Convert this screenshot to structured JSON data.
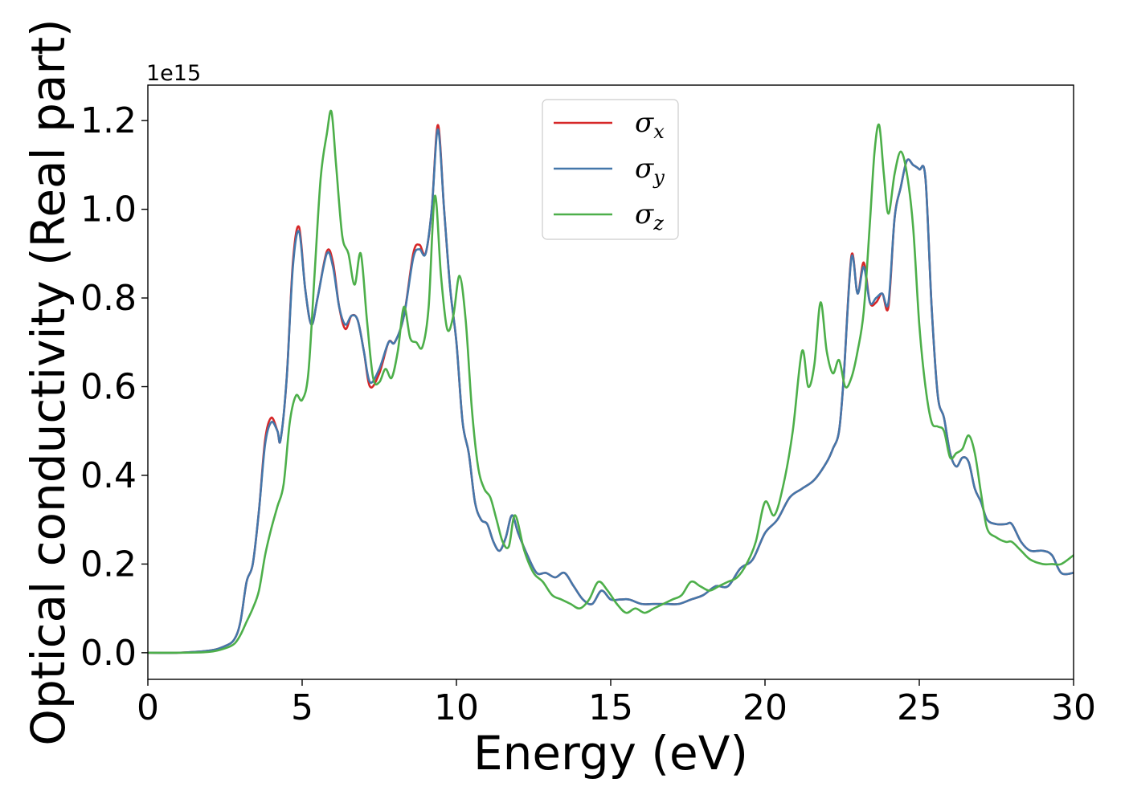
{
  "chart_data": {
    "type": "line",
    "title": "",
    "xlabel": "Energy (eV)",
    "ylabel": "Optical conductivity (Real part)",
    "y_offset_label": "1e15",
    "xlim": [
      0,
      30
    ],
    "ylim": [
      -0.06,
      1.28
    ],
    "x_ticks": [
      0,
      5,
      10,
      15,
      20,
      25,
      30
    ],
    "x_tick_labels": [
      "0",
      "5",
      "10",
      "15",
      "20",
      "25",
      "30"
    ],
    "y_ticks": [
      0.0,
      0.2,
      0.4,
      0.6,
      0.8,
      1.0,
      1.2
    ],
    "y_tick_labels": [
      "0.0",
      "0.2",
      "0.4",
      "0.6",
      "0.8",
      "1.0",
      "1.2"
    ],
    "grid": false,
    "legend_position": "top-center",
    "series": [
      {
        "name": "σx",
        "legend_base": "σ",
        "legend_sub": "x",
        "color": "#d62728",
        "x": [
          0,
          1,
          2,
          2.5,
          2.8,
          3.0,
          3.2,
          3.4,
          3.6,
          3.8,
          4.0,
          4.2,
          4.3,
          4.5,
          4.7,
          4.9,
          5.1,
          5.3,
          5.5,
          5.8,
          6.0,
          6.2,
          6.4,
          6.6,
          6.8,
          7.0,
          7.2,
          7.5,
          7.8,
          8.0,
          8.3,
          8.6,
          8.8,
          9.0,
          9.2,
          9.4,
          9.6,
          9.8,
          10.0,
          10.2,
          10.4,
          10.6,
          10.8,
          11.0,
          11.2,
          11.4,
          11.6,
          11.8,
          12.0,
          12.3,
          12.6,
          12.9,
          13.2,
          13.5,
          13.8,
          14.1,
          14.4,
          14.7,
          15.0,
          15.3,
          15.6,
          16.0,
          16.4,
          16.8,
          17.2,
          17.6,
          18.0,
          18.4,
          18.8,
          19.2,
          19.6,
          20.0,
          20.4,
          20.8,
          21.2,
          21.6,
          22.0,
          22.2,
          22.4,
          22.55,
          22.8,
          23.0,
          23.2,
          23.4,
          23.6,
          23.8,
          24.0,
          24.2,
          24.4,
          24.6,
          24.8,
          25.0,
          25.2,
          25.4,
          25.6,
          25.8,
          26.0,
          26.2,
          26.4,
          26.6,
          26.8,
          27.0,
          27.2,
          27.5,
          27.8,
          28.0,
          28.3,
          28.6,
          29.0,
          29.3,
          29.6,
          30.0
        ],
        "y": [
          0.0,
          0.0,
          0.005,
          0.015,
          0.03,
          0.07,
          0.16,
          0.2,
          0.32,
          0.48,
          0.53,
          0.5,
          0.48,
          0.62,
          0.88,
          0.96,
          0.82,
          0.74,
          0.8,
          0.905,
          0.88,
          0.78,
          0.73,
          0.76,
          0.75,
          0.68,
          0.6,
          0.63,
          0.7,
          0.7,
          0.76,
          0.9,
          0.92,
          0.9,
          1.0,
          1.19,
          1.0,
          0.82,
          0.7,
          0.52,
          0.45,
          0.34,
          0.3,
          0.29,
          0.25,
          0.23,
          0.26,
          0.31,
          0.27,
          0.22,
          0.18,
          0.18,
          0.17,
          0.18,
          0.15,
          0.12,
          0.11,
          0.14,
          0.12,
          0.12,
          0.12,
          0.11,
          0.11,
          0.11,
          0.11,
          0.12,
          0.13,
          0.15,
          0.15,
          0.19,
          0.21,
          0.27,
          0.3,
          0.35,
          0.37,
          0.39,
          0.43,
          0.46,
          0.5,
          0.62,
          0.895,
          0.81,
          0.88,
          0.79,
          0.79,
          0.81,
          0.78,
          0.98,
          1.05,
          1.11,
          1.1,
          1.09,
          1.07,
          0.78,
          0.58,
          0.53,
          0.45,
          0.42,
          0.44,
          0.43,
          0.37,
          0.34,
          0.3,
          0.29,
          0.29,
          0.29,
          0.25,
          0.23,
          0.23,
          0.22,
          0.18,
          0.18
        ]
      },
      {
        "name": "σy",
        "legend_base": "σ",
        "legend_sub": "y",
        "color": "#4477aa",
        "x": [
          0,
          1,
          2,
          2.5,
          2.8,
          3.0,
          3.2,
          3.4,
          3.6,
          3.8,
          4.0,
          4.2,
          4.3,
          4.5,
          4.7,
          4.9,
          5.1,
          5.3,
          5.5,
          5.8,
          6.0,
          6.2,
          6.4,
          6.6,
          6.8,
          7.0,
          7.2,
          7.5,
          7.8,
          8.0,
          8.3,
          8.6,
          8.8,
          9.0,
          9.2,
          9.4,
          9.6,
          9.8,
          10.0,
          10.2,
          10.4,
          10.6,
          10.8,
          11.0,
          11.2,
          11.4,
          11.6,
          11.8,
          12.0,
          12.3,
          12.6,
          12.9,
          13.2,
          13.5,
          13.8,
          14.1,
          14.4,
          14.7,
          15.0,
          15.3,
          15.6,
          16.0,
          16.4,
          16.8,
          17.2,
          17.6,
          18.0,
          18.4,
          18.8,
          19.2,
          19.6,
          20.0,
          20.4,
          20.8,
          21.2,
          21.6,
          22.0,
          22.2,
          22.4,
          22.55,
          22.8,
          23.0,
          23.2,
          23.4,
          23.6,
          23.8,
          24.0,
          24.2,
          24.4,
          24.6,
          24.8,
          25.0,
          25.2,
          25.4,
          25.6,
          25.8,
          26.0,
          26.2,
          26.4,
          26.6,
          26.8,
          27.0,
          27.2,
          27.5,
          27.8,
          28.0,
          28.3,
          28.6,
          29.0,
          29.3,
          29.6,
          30.0
        ],
        "y": [
          0.0,
          0.0,
          0.005,
          0.015,
          0.03,
          0.07,
          0.16,
          0.2,
          0.32,
          0.47,
          0.52,
          0.5,
          0.48,
          0.62,
          0.87,
          0.95,
          0.82,
          0.74,
          0.8,
          0.9,
          0.87,
          0.78,
          0.74,
          0.76,
          0.75,
          0.68,
          0.61,
          0.64,
          0.7,
          0.7,
          0.76,
          0.89,
          0.91,
          0.9,
          1.0,
          1.18,
          1.0,
          0.82,
          0.7,
          0.52,
          0.45,
          0.34,
          0.3,
          0.29,
          0.25,
          0.23,
          0.26,
          0.31,
          0.27,
          0.22,
          0.18,
          0.18,
          0.17,
          0.18,
          0.15,
          0.12,
          0.11,
          0.14,
          0.12,
          0.12,
          0.12,
          0.11,
          0.11,
          0.11,
          0.11,
          0.12,
          0.13,
          0.15,
          0.15,
          0.19,
          0.21,
          0.27,
          0.3,
          0.35,
          0.37,
          0.39,
          0.43,
          0.46,
          0.5,
          0.62,
          0.89,
          0.81,
          0.87,
          0.79,
          0.8,
          0.81,
          0.79,
          0.98,
          1.05,
          1.11,
          1.1,
          1.09,
          1.07,
          0.78,
          0.58,
          0.53,
          0.45,
          0.42,
          0.44,
          0.43,
          0.37,
          0.34,
          0.3,
          0.29,
          0.29,
          0.29,
          0.25,
          0.23,
          0.23,
          0.22,
          0.18,
          0.18
        ]
      },
      {
        "name": "σz",
        "legend_base": "σ",
        "legend_sub": "z",
        "color": "#4daf4a",
        "x": [
          0,
          1,
          2,
          2.5,
          2.8,
          3.0,
          3.2,
          3.4,
          3.6,
          3.8,
          4.0,
          4.2,
          4.4,
          4.6,
          4.8,
          5.0,
          5.2,
          5.4,
          5.6,
          5.8,
          5.95,
          6.1,
          6.3,
          6.5,
          6.7,
          6.9,
          7.1,
          7.3,
          7.5,
          7.7,
          7.9,
          8.1,
          8.3,
          8.5,
          8.7,
          8.9,
          9.1,
          9.3,
          9.5,
          9.7,
          9.9,
          10.1,
          10.3,
          10.5,
          10.7,
          10.9,
          11.1,
          11.3,
          11.5,
          11.7,
          11.9,
          12.2,
          12.5,
          12.8,
          13.1,
          13.4,
          13.7,
          14.0,
          14.3,
          14.6,
          14.9,
          15.2,
          15.5,
          15.8,
          16.1,
          16.4,
          16.7,
          17.0,
          17.3,
          17.6,
          17.9,
          18.2,
          18.5,
          18.8,
          19.1,
          19.4,
          19.7,
          20.0,
          20.3,
          20.6,
          20.9,
          21.2,
          21.4,
          21.6,
          21.8,
          22.0,
          22.2,
          22.4,
          22.6,
          22.8,
          23.0,
          23.2,
          23.4,
          23.55,
          23.7,
          23.85,
          24.0,
          24.2,
          24.4,
          24.6,
          24.8,
          25.0,
          25.2,
          25.4,
          25.6,
          25.8,
          26.0,
          26.2,
          26.4,
          26.6,
          26.8,
          27.0,
          27.2,
          27.5,
          27.8,
          28.0,
          28.3,
          28.6,
          29.0,
          29.3,
          29.6,
          30.0
        ],
        "y": [
          0.0,
          0.0,
          0.002,
          0.01,
          0.02,
          0.04,
          0.07,
          0.1,
          0.14,
          0.22,
          0.28,
          0.33,
          0.38,
          0.52,
          0.58,
          0.57,
          0.63,
          0.85,
          1.07,
          1.17,
          1.22,
          1.1,
          0.94,
          0.9,
          0.83,
          0.9,
          0.75,
          0.62,
          0.61,
          0.64,
          0.62,
          0.68,
          0.78,
          0.71,
          0.7,
          0.69,
          0.78,
          1.03,
          0.85,
          0.73,
          0.76,
          0.85,
          0.75,
          0.55,
          0.42,
          0.37,
          0.35,
          0.3,
          0.25,
          0.24,
          0.31,
          0.23,
          0.18,
          0.16,
          0.13,
          0.12,
          0.11,
          0.1,
          0.12,
          0.16,
          0.14,
          0.11,
          0.09,
          0.1,
          0.09,
          0.1,
          0.11,
          0.12,
          0.13,
          0.16,
          0.15,
          0.14,
          0.15,
          0.16,
          0.17,
          0.2,
          0.25,
          0.34,
          0.31,
          0.38,
          0.5,
          0.68,
          0.6,
          0.65,
          0.79,
          0.68,
          0.63,
          0.66,
          0.6,
          0.62,
          0.68,
          0.77,
          0.97,
          1.13,
          1.19,
          1.08,
          0.99,
          1.08,
          1.13,
          1.08,
          0.96,
          0.74,
          0.6,
          0.52,
          0.51,
          0.5,
          0.44,
          0.45,
          0.46,
          0.49,
          0.45,
          0.36,
          0.28,
          0.26,
          0.25,
          0.25,
          0.23,
          0.21,
          0.2,
          0.2,
          0.2,
          0.22
        ]
      }
    ]
  }
}
